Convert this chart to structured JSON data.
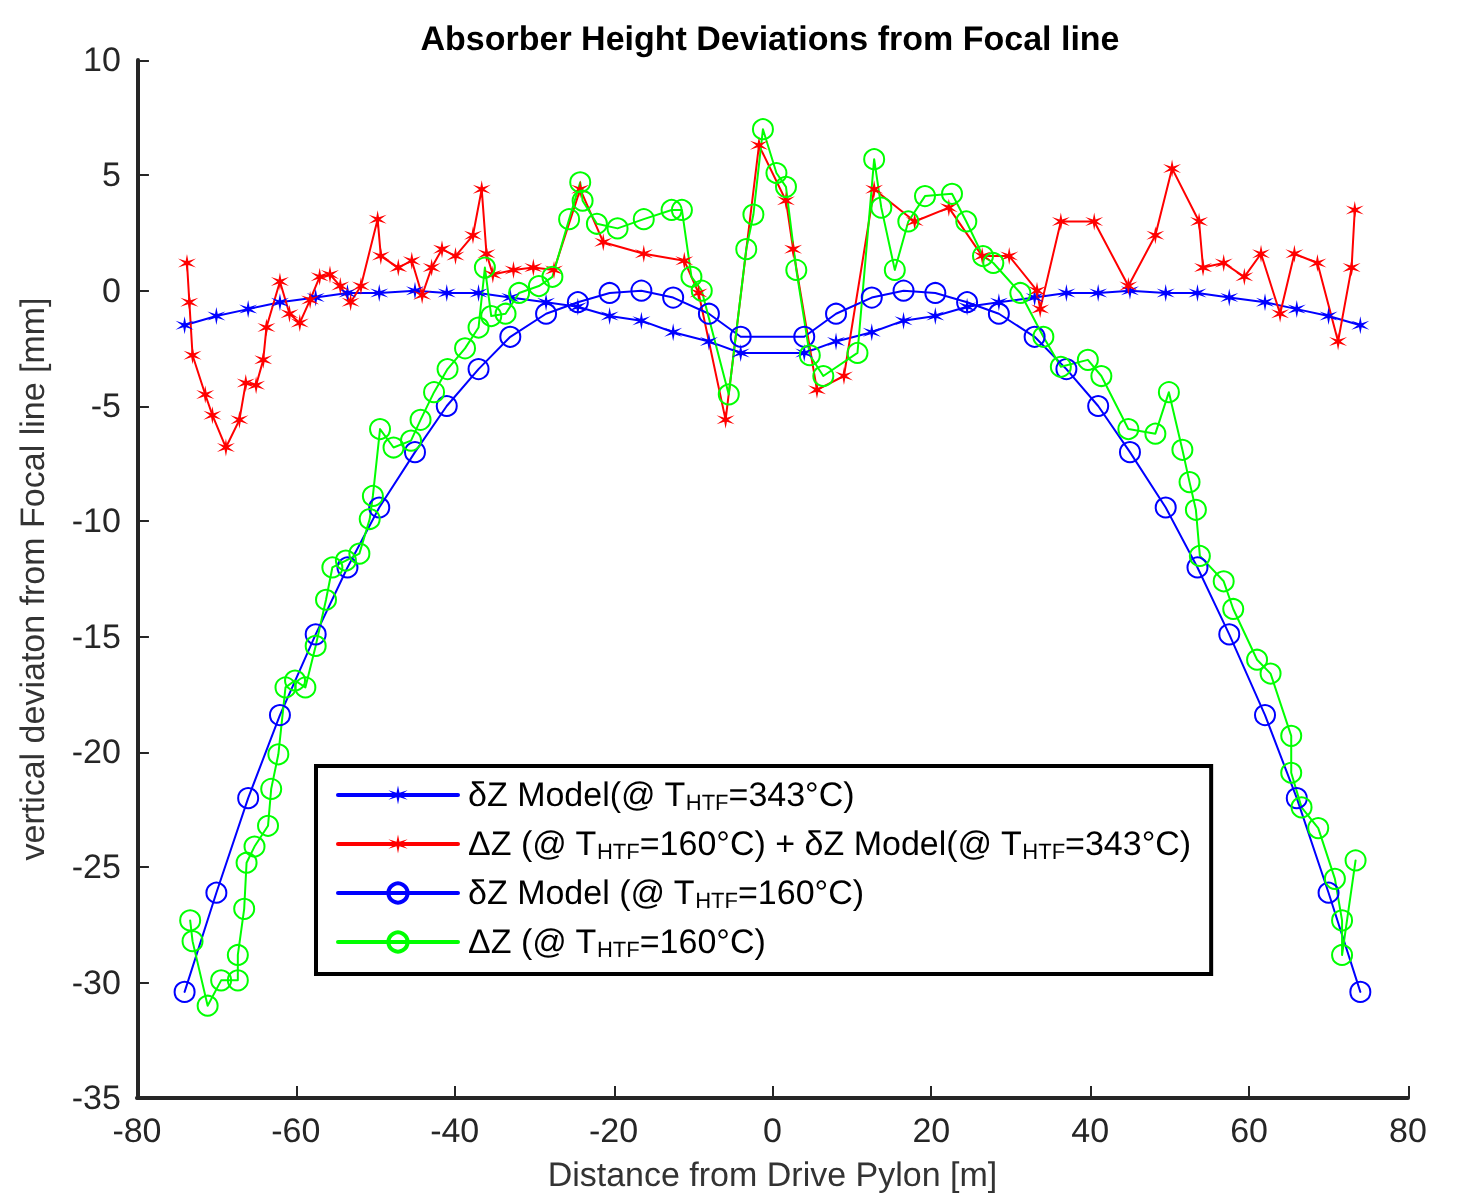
{
  "chart_data": {
    "type": "line",
    "title": "Absorber Height Deviations from Focal line",
    "xlabel": "Distance from Drive Pylon [m]",
    "ylabel": "vertical deviaton from Focal line [mm]",
    "xlim": [
      -80,
      80
    ],
    "xticks": [
      -80,
      -60,
      -40,
      -20,
      0,
      20,
      40,
      60,
      80
    ],
    "ylim": [
      -35,
      10
    ],
    "yticks": [
      -35,
      -30,
      -25,
      -20,
      -15,
      -10,
      -5,
      0,
      5,
      10
    ],
    "grid": false,
    "legend": "bottom",
    "line_style": "solid",
    "series": [
      {
        "name": "δZ Model(@ T$_{HTF}$=343°C)",
        "color": "#0000ff",
        "marker": "cross",
        "x": [
          -74,
          -70,
          -66,
          -62,
          -57.5,
          -53.5,
          -49.5,
          -45,
          -41,
          -37,
          -33,
          -28.5,
          -24.5,
          -20.5,
          -16.5,
          -12.5,
          -8,
          -4,
          4,
          8,
          12.5,
          16.5,
          20.5,
          24.5,
          28.5,
          33,
          37,
          41,
          45,
          49.5,
          53.5,
          57.5,
          62,
          66,
          70,
          74
        ],
        "values": [
          -1.5,
          -1.1,
          -0.8,
          -0.5,
          -0.3,
          -0.1,
          -0.1,
          0,
          -0.1,
          -0.1,
          -0.3,
          -0.5,
          -0.7,
          -1.1,
          -1.3,
          -1.8,
          -2.2,
          -2.7,
          -2.7,
          -2.2,
          -1.8,
          -1.3,
          -1.1,
          -0.7,
          -0.5,
          -0.3,
          -0.1,
          -0.1,
          0,
          -0.1,
          -0.1,
          -0.3,
          -0.5,
          -0.8,
          -1.1,
          -1.5
        ]
      },
      {
        "name": "ΔZ (@ T$_{HTF}$=160°C) + δZ Model(@ T$_{HTF}$=343°C)",
        "color": "#ff0000",
        "marker": "cross",
        "x": [
          -73.7,
          -73.4,
          -73,
          -71.4,
          -70.5,
          -68.8,
          -67.1,
          -66.3,
          -65,
          -64.1,
          -63.7,
          -62,
          -60.8,
          -59.5,
          -58.2,
          -57,
          -55.7,
          -54.4,
          -53.1,
          -51.8,
          -49.7,
          -49.3,
          -47.1,
          -45.4,
          -44.1,
          -42.9,
          -41.6,
          -39.9,
          -37.7,
          -36.6,
          -36,
          -35.2,
          -32.6,
          -30.1,
          -27.5,
          -24.2,
          -21.3,
          -16.2,
          -11.1,
          -9.3,
          -5.9,
          -1.7,
          1.7,
          2.6,
          5.6,
          9,
          12.8,
          17.9,
          22.2,
          26.4,
          29.8,
          33.3,
          33.7,
          36.3,
          40.5,
          44.8,
          48.2,
          50.3,
          53.7,
          54.2,
          56.8,
          59.4,
          61.5,
          63.9,
          65.7,
          68.6,
          71.2,
          72.9,
          73.3
        ],
        "values": [
          1.2,
          -0.5,
          -2.8,
          -4.5,
          -5.4,
          -6.8,
          -5.6,
          -4,
          -4.1,
          -3,
          -1.6,
          0.4,
          -1,
          -1.4,
          -0.4,
          0.6,
          0.7,
          0.2,
          -0.5,
          0.2,
          3.1,
          1.5,
          1,
          1.3,
          -0.2,
          1,
          1.8,
          1.5,
          2.4,
          4.4,
          1.6,
          0.7,
          0.9,
          1,
          0.9,
          4.4,
          2.1,
          1.6,
          1.3,
          -0.1,
          -5.6,
          6.3,
          3.9,
          1.8,
          -4.3,
          -3.7,
          4.4,
          3,
          3.6,
          1.5,
          1.5,
          0,
          -0.8,
          3,
          3,
          0.2,
          2.4,
          5.3,
          3,
          1,
          1.2,
          0.6,
          1.6,
          -1,
          1.6,
          1.2,
          -2.2,
          1,
          3.5
        ]
      },
      {
        "name": "δZ Model (@ T$_{HTF}$=160°C)",
        "color": "#0000ff",
        "marker": "circle",
        "x": [
          -74,
          -70,
          -66,
          -62,
          -57.5,
          -53.5,
          -49.5,
          -45,
          -41,
          -37,
          -33,
          -28.5,
          -24.5,
          -20.5,
          -16.5,
          -12.5,
          -8,
          -4,
          4,
          8,
          12.5,
          16.5,
          20.5,
          24.5,
          28.5,
          33,
          37,
          41,
          45,
          49.5,
          53.5,
          57.5,
          62,
          66,
          70,
          74
        ],
        "values": [
          -30.4,
          -26.1,
          -22,
          -18.4,
          -14.9,
          -12,
          -9.4,
          -7,
          -5,
          -3.4,
          -2,
          -1,
          -0.5,
          -0.1,
          0,
          -0.3,
          -1,
          -2,
          -2,
          -1,
          -0.3,
          0,
          -0.1,
          -0.5,
          -1,
          -2,
          -3.4,
          -5,
          -7,
          -9.4,
          -12,
          -14.9,
          -18.4,
          -22,
          -26.1,
          -30.4
        ]
      },
      {
        "name": "ΔZ (@ T$_{HTF}$=160°C)",
        "color": "#00ff00",
        "marker": "circle",
        "x": [
          -73.3,
          -73,
          -71.1,
          -69.4,
          -67.3,
          -67.3,
          -66.5,
          -66.2,
          -65.2,
          -63.5,
          -63.1,
          -62.2,
          -61.3,
          -60.1,
          -58.8,
          -57.5,
          -56.2,
          -55.4,
          -53.7,
          -52,
          -50.7,
          -50.3,
          -49.4,
          -47.7,
          -45.5,
          -44.3,
          -42.6,
          -40.9,
          -38.7,
          -37,
          -36.2,
          -35.4,
          -33.6,
          -31.9,
          -29.4,
          -27.7,
          -25.6,
          -24.2,
          -23.9,
          -22.1,
          -19.5,
          -16.2,
          -12.7,
          -11.4,
          -10.2,
          -8.9,
          -5.5,
          -3.3,
          -2.4,
          -1.2,
          0.5,
          1.7,
          3,
          4.7,
          6.4,
          10.7,
          12.8,
          13.7,
          15.4,
          17.1,
          19.2,
          22.6,
          24.4,
          26.5,
          27.8,
          31.2,
          34.1,
          36.3,
          39.7,
          41.4,
          44.8,
          48.2,
          49.9,
          51.6,
          52.5,
          53.3,
          53.8,
          56.8,
          58,
          61,
          62.7,
          65.3,
          65.3,
          66.6,
          68.7,
          70.8,
          71.7,
          71.7,
          73.4
        ],
        "values": [
          -27.3,
          -28.2,
          -31,
          -29.9,
          -29.9,
          -28.8,
          -26.8,
          -24.8,
          -24.1,
          -23.2,
          -21.6,
          -20.1,
          -17.2,
          -16.9,
          -17.2,
          -15.4,
          -13.4,
          -12,
          -11.7,
          -11.4,
          -9.9,
          -8.9,
          -6,
          -6.8,
          -6.5,
          -5.6,
          -4.4,
          -3.4,
          -2.5,
          -1.6,
          1,
          -1.1,
          -1,
          -0.1,
          0.2,
          0.6,
          3.1,
          4.7,
          3.9,
          2.9,
          2.7,
          3.1,
          3.5,
          3.5,
          0.6,
          0,
          -4.5,
          1.8,
          3.3,
          7,
          5.1,
          4.5,
          0.9,
          -2.8,
          -3.7,
          -2.7,
          5.7,
          3.6,
          0.9,
          3,
          4.1,
          4.2,
          3,
          1.5,
          1.2,
          -0.1,
          -2,
          -3.3,
          -3,
          -3.7,
          -6,
          -6.2,
          -4.4,
          -6.9,
          -8.3,
          -9.5,
          -11.5,
          -12.6,
          -13.8,
          -16,
          -16.6,
          -19.3,
          -20.9,
          -22.4,
          -23.3,
          -25.5,
          -27.3,
          -28.8,
          -24.7
        ]
      }
    ]
  }
}
